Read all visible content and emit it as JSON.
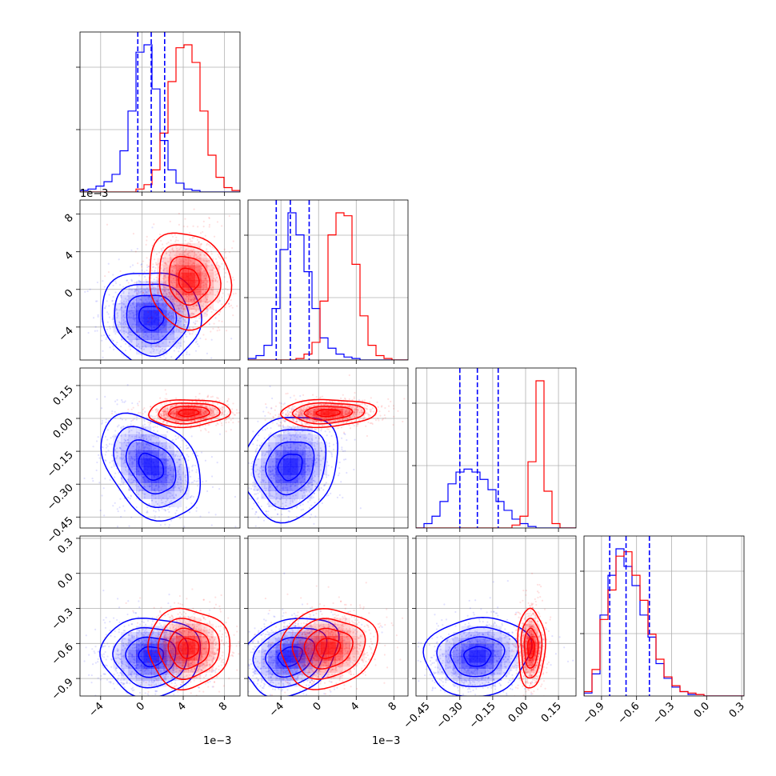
{
  "chart_data": {
    "type": "corner",
    "grid": true,
    "n_params": 4,
    "colors": {
      "series_a": "#0000ff",
      "series_b": "#ff0000",
      "quantile_lines": "#0000ff"
    },
    "params": [
      {
        "range": [
          -0.006,
          0.0095
        ],
        "ticks": [
          -0.004,
          0.0,
          0.004,
          0.008
        ],
        "tick_labels": [
          "−4",
          "0",
          "4",
          "8"
        ],
        "offset": "1e−3"
      },
      {
        "range": [
          -0.0075,
          0.0095
        ],
        "ticks": [
          -0.004,
          0.0,
          0.004,
          0.008
        ],
        "tick_labels": [
          "−4",
          "0",
          "4",
          "8"
        ],
        "offset": "1e−3"
      },
      {
        "range": [
          -0.5,
          0.23
        ],
        "ticks": [
          -0.45,
          -0.3,
          -0.15,
          0.0,
          0.15
        ],
        "tick_labels": [
          "−0.45",
          "−0.30",
          "−0.15",
          "0.00",
          "0.15"
        ],
        "offset": ""
      },
      {
        "range": [
          -1.05,
          0.32
        ],
        "ticks": [
          -0.9,
          -0.6,
          -0.3,
          0.0,
          0.3
        ],
        "tick_labels": [
          "−0.9",
          "−0.6",
          "−0.3",
          "0.0",
          "0.3"
        ],
        "offset": ""
      }
    ],
    "series": [
      {
        "color": "#0000ff",
        "means": [
          0.0009,
          -0.003,
          -0.22,
          -0.71
        ],
        "stds": [
          0.0017,
          0.0018,
          0.085,
          0.12
        ]
      },
      {
        "color": "#ff0000",
        "means": [
          0.0045,
          0.001,
          0.025,
          -0.64
        ],
        "stds": [
          0.0014,
          0.0018,
          0.022,
          0.12
        ]
      }
    ],
    "correlations": {
      "series_a": [
        [
          0,
          1,
          -0.05
        ],
        [
          0,
          2,
          -0.35
        ],
        [
          0,
          3,
          0.0
        ],
        [
          1,
          2,
          0.15
        ],
        [
          1,
          3,
          0.25
        ],
        [
          2,
          3,
          0.1
        ]
      ],
      "series_b": [
        [
          0,
          1,
          -0.1
        ],
        [
          0,
          2,
          0.1
        ],
        [
          0,
          3,
          0.0
        ],
        [
          1,
          2,
          0.1
        ],
        [
          1,
          3,
          0.1
        ],
        [
          2,
          3,
          0.0
        ]
      ]
    },
    "quantiles": [
      [
        -0.0004,
        0.0009,
        0.0022
      ],
      [
        -0.0045,
        -0.003,
        -0.001
      ],
      [
        -0.3,
        -0.22,
        -0.125
      ],
      [
        -0.83,
        -0.69,
        -0.49
      ]
    ],
    "histograms": {
      "p1": {
        "bins": [
          -0.006,
          0.0095
        ],
        "series_a": [
          1,
          2,
          4,
          7,
          12,
          28,
          55,
          95,
          100,
          70,
          35,
          15,
          6,
          2,
          1,
          0,
          0,
          0,
          0,
          0
        ],
        "series_b": [
          0,
          0,
          0,
          0,
          0,
          0,
          0,
          2,
          5,
          15,
          40,
          75,
          98,
          100,
          88,
          55,
          25,
          10,
          3,
          1
        ]
      },
      "p2": {
        "bins": [
          -0.0075,
          0.0095
        ],
        "series_a": [
          1,
          3,
          10,
          35,
          75,
          100,
          85,
          60,
          35,
          15,
          8,
          4,
          2,
          1,
          0,
          0,
          0,
          0,
          0,
          0
        ],
        "series_b": [
          0,
          0,
          0,
          0,
          0,
          0,
          1,
          4,
          12,
          40,
          85,
          100,
          98,
          65,
          30,
          10,
          3,
          1,
          0,
          0
        ]
      },
      "p3": {
        "bins": [
          -0.5,
          0.23
        ],
        "series_a": [
          0,
          3,
          8,
          18,
          30,
          38,
          40,
          38,
          33,
          26,
          18,
          12,
          6,
          3,
          1,
          0,
          0,
          0,
          0,
          0
        ],
        "series_b": [
          0,
          0,
          0,
          0,
          0,
          0,
          0,
          0,
          0,
          0,
          0,
          0,
          2,
          8,
          45,
          100,
          25,
          3,
          0,
          0
        ]
      },
      "p4": {
        "bins": [
          -1.05,
          0.32
        ],
        "series_a": [
          2,
          15,
          55,
          82,
          100,
          88,
          75,
          55,
          40,
          22,
          12,
          6,
          3,
          1,
          1,
          0,
          0,
          0,
          0,
          0
        ],
        "series_b": [
          3,
          18,
          52,
          72,
          95,
          98,
          82,
          65,
          42,
          25,
          13,
          7,
          3,
          2,
          1,
          0,
          0,
          0,
          0,
          0
        ]
      }
    }
  }
}
